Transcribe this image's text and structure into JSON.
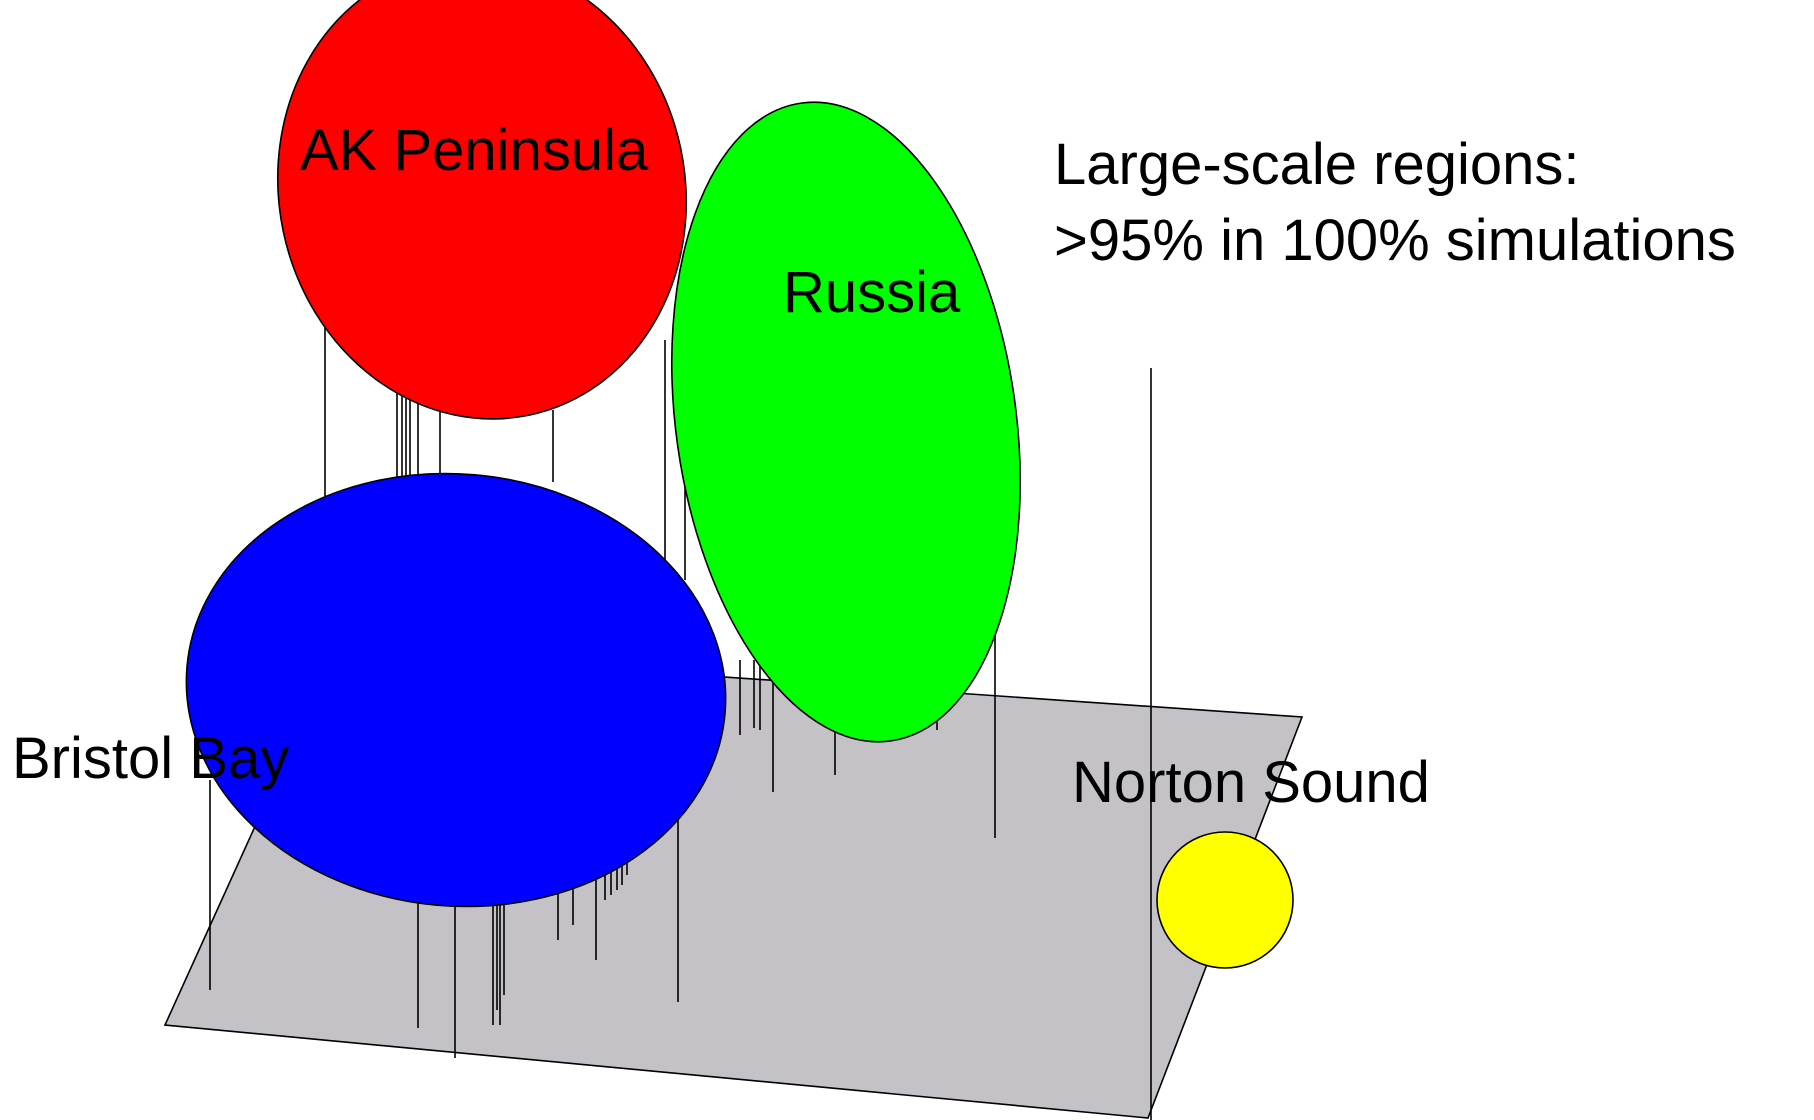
{
  "caption": {
    "line1": "Large-scale regions:",
    "line2": ">95% in 100% simulations"
  },
  "regions": {
    "ak_peninsula": {
      "label": "AK Peninsula",
      "color": "#ff0000"
    },
    "russia": {
      "label": "Russia",
      "color": "#00ff00"
    },
    "bristol_bay": {
      "label": "Bristol Bay",
      "color": "#0000ff"
    },
    "norton_sound": {
      "label": "Norton Sound",
      "color": "#ffff00"
    }
  },
  "colors": {
    "plane": "#c4c2c6",
    "stem": "#000000",
    "background": "#ffffff"
  }
}
